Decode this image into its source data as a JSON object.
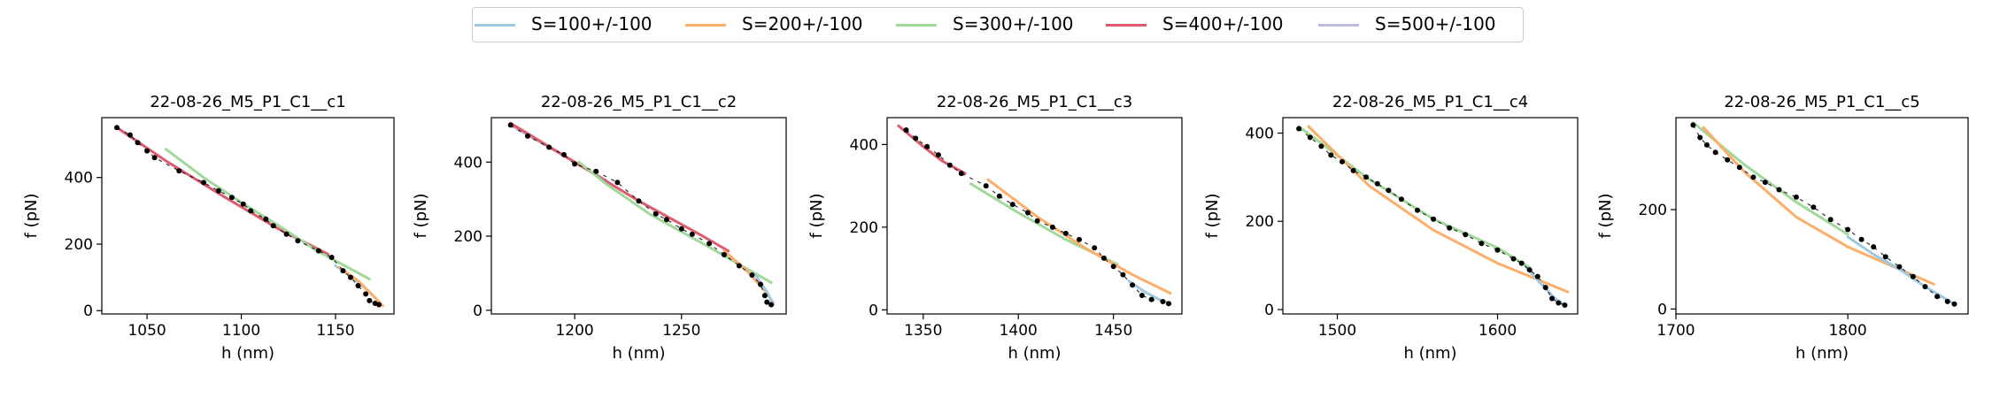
{
  "legend": [
    {
      "label": "S=100+/-100",
      "color": "#9ecae1"
    },
    {
      "label": "S=200+/-100",
      "color": "#fdae6b"
    },
    {
      "label": "S=300+/-100",
      "color": "#a1d99b"
    },
    {
      "label": "S=400+/-100",
      "color": "#de5b6d"
    },
    {
      "label": "S=500+/-100",
      "color": "#bcbddc"
    }
  ],
  "chart_data": [
    {
      "type": "scatter",
      "title": "22-08-26_M5_P1_C1__c1",
      "xlabel": "h (nm)",
      "ylabel": "f (pN)",
      "xlim": [
        1026,
        1181
      ],
      "ylim": [
        -10,
        580
      ],
      "xticks": [
        1050,
        1100,
        1150
      ],
      "yticks": [
        0,
        200,
        400
      ],
      "points": [
        [
          1034,
          550
        ],
        [
          1041,
          528
        ],
        [
          1045,
          505
        ],
        [
          1050,
          480
        ],
        [
          1054,
          460
        ],
        [
          1067,
          420
        ],
        [
          1080,
          385
        ],
        [
          1088,
          360
        ],
        [
          1095,
          340
        ],
        [
          1101,
          320
        ],
        [
          1105,
          300
        ],
        [
          1113,
          275
        ],
        [
          1117,
          255
        ],
        [
          1124,
          230
        ],
        [
          1130,
          210
        ],
        [
          1141,
          180
        ],
        [
          1148,
          160
        ],
        [
          1154,
          120
        ],
        [
          1158,
          100
        ],
        [
          1162,
          75
        ],
        [
          1166,
          50
        ],
        [
          1168,
          30
        ],
        [
          1171,
          22
        ],
        [
          1173,
          18
        ]
      ],
      "series": [
        {
          "name": "S=400+/-100",
          "color": "#de5b6d",
          "x": [
            1034,
            1060,
            1090,
            1120,
            1146
          ],
          "y": [
            550,
            450,
            345,
            245,
            170
          ]
        },
        {
          "name": "S=300+/-100",
          "color": "#a1d99b",
          "x": [
            1060,
            1080,
            1100,
            1120,
            1140,
            1168
          ],
          "y": [
            485,
            400,
            325,
            255,
            180,
            95
          ]
        },
        {
          "name": "S=100+/-100",
          "color": "#9ecae1",
          "x": [
            1150,
            1160,
            1168,
            1175
          ],
          "y": [
            135,
            95,
            55,
            15
          ]
        },
        {
          "name": "S=200+/-100",
          "color": "#fdae6b",
          "x": [
            1152,
            1162,
            1170,
            1175
          ],
          "y": [
            130,
            90,
            45,
            15
          ]
        }
      ]
    },
    {
      "type": "scatter",
      "title": "22-08-26_M5_P1_C1__c2",
      "xlabel": "h (nm)",
      "ylabel": "f (pN)",
      "xlim": [
        1161,
        1299
      ],
      "ylim": [
        -10,
        520
      ],
      "xticks": [
        1200,
        1250
      ],
      "yticks": [
        0,
        200,
        400
      ],
      "points": [
        [
          1170,
          500
        ],
        [
          1178,
          470
        ],
        [
          1188,
          440
        ],
        [
          1195,
          420
        ],
        [
          1200,
          395
        ],
        [
          1210,
          375
        ],
        [
          1220,
          345
        ],
        [
          1230,
          295
        ],
        [
          1238,
          260
        ],
        [
          1243,
          245
        ],
        [
          1250,
          220
        ],
        [
          1255,
          205
        ],
        [
          1263,
          180
        ],
        [
          1270,
          150
        ],
        [
          1277,
          120
        ],
        [
          1283,
          95
        ],
        [
          1287,
          70
        ],
        [
          1289,
          40
        ],
        [
          1290,
          22
        ],
        [
          1292,
          15
        ]
      ],
      "series": [
        {
          "name": "S=500+/-100",
          "color": "#bcbddc",
          "x": [
            1170,
            1185,
            1200,
            1215
          ],
          "y": [
            500,
            450,
            400,
            350
          ]
        },
        {
          "name": "S=400+/-100",
          "color": "#de5b6d",
          "x": [
            1170,
            1200,
            1230,
            1260,
            1272
          ],
          "y": [
            505,
            400,
            295,
            200,
            160
          ]
        },
        {
          "name": "S=300+/-100",
          "color": "#a1d99b",
          "x": [
            1202,
            1215,
            1235,
            1260,
            1292
          ],
          "y": [
            400,
            340,
            260,
            180,
            75
          ]
        },
        {
          "name": "S=200+/-100",
          "color": "#fdae6b",
          "x": [
            1270,
            1280,
            1288,
            1293
          ],
          "y": [
            160,
            110,
            60,
            20
          ]
        },
        {
          "name": "S=100+/-100",
          "color": "#9ecae1",
          "x": [
            1284,
            1290,
            1293
          ],
          "y": [
            100,
            50,
            15
          ]
        }
      ]
    },
    {
      "type": "scatter",
      "title": "22-08-26_M5_P1_C1__c3",
      "xlabel": "h (nm)",
      "ylabel": "f (pN)",
      "xlim": [
        1331,
        1486
      ],
      "ylim": [
        -10,
        465
      ],
      "xticks": [
        1350,
        1400,
        1450
      ],
      "yticks": [
        0,
        200,
        400
      ],
      "points": [
        [
          1341,
          435
        ],
        [
          1346,
          415
        ],
        [
          1352,
          395
        ],
        [
          1358,
          375
        ],
        [
          1364,
          350
        ],
        [
          1370,
          330
        ],
        [
          1383,
          300
        ],
        [
          1390,
          275
        ],
        [
          1397,
          255
        ],
        [
          1405,
          235
        ],
        [
          1410,
          215
        ],
        [
          1418,
          200
        ],
        [
          1425,
          185
        ],
        [
          1432,
          170
        ],
        [
          1440,
          150
        ],
        [
          1445,
          125
        ],
        [
          1450,
          105
        ],
        [
          1455,
          85
        ],
        [
          1460,
          60
        ],
        [
          1465,
          35
        ],
        [
          1470,
          25
        ],
        [
          1476,
          20
        ],
        [
          1479,
          15
        ]
      ],
      "series": [
        {
          "name": "S=400+/-100",
          "color": "#de5b6d",
          "x": [
            1337,
            1350,
            1360,
            1372
          ],
          "y": [
            445,
            395,
            360,
            330
          ]
        },
        {
          "name": "S=300+/-100",
          "color": "#a1d99b",
          "x": [
            1375,
            1400,
            1425,
            1452
          ],
          "y": [
            305,
            235,
            170,
            110
          ]
        },
        {
          "name": "S=200+/-100",
          "color": "#fdae6b",
          "x": [
            1384,
            1410,
            1435,
            1460,
            1480
          ],
          "y": [
            315,
            225,
            150,
            85,
            40
          ]
        },
        {
          "name": "S=100+/-100",
          "color": "#9ecae1",
          "x": [
            1458,
            1466,
            1474,
            1480
          ],
          "y": [
            70,
            45,
            25,
            15
          ]
        }
      ]
    },
    {
      "type": "scatter",
      "title": "22-08-26_M5_P1_C1__c4",
      "xlabel": "h (nm)",
      "ylabel": "f (pN)",
      "xlim": [
        1466,
        1650
      ],
      "ylim": [
        -10,
        435
      ],
      "xticks": [
        1500,
        1600
      ],
      "yticks": [
        0,
        200,
        400
      ],
      "points": [
        [
          1476,
          410
        ],
        [
          1483,
          390
        ],
        [
          1490,
          370
        ],
        [
          1496,
          350
        ],
        [
          1503,
          335
        ],
        [
          1510,
          315
        ],
        [
          1518,
          300
        ],
        [
          1525,
          285
        ],
        [
          1532,
          270
        ],
        [
          1540,
          250
        ],
        [
          1550,
          225
        ],
        [
          1560,
          205
        ],
        [
          1570,
          185
        ],
        [
          1580,
          170
        ],
        [
          1590,
          150
        ],
        [
          1600,
          135
        ],
        [
          1610,
          115
        ],
        [
          1615,
          105
        ],
        [
          1620,
          90
        ],
        [
          1625,
          75
        ],
        [
          1630,
          50
        ],
        [
          1634,
          25
        ],
        [
          1638,
          15
        ],
        [
          1642,
          10
        ]
      ],
      "series": [
        {
          "name": "S=300+/-100",
          "color": "#a1d99b",
          "x": [
            1476,
            1520,
            1560,
            1600,
            1620
          ],
          "y": [
            415,
            295,
            205,
            140,
            95
          ]
        },
        {
          "name": "S=200+/-100",
          "color": "#fdae6b",
          "x": [
            1482,
            1520,
            1560,
            1600,
            1644
          ],
          "y": [
            415,
            280,
            180,
            105,
            40
          ]
        },
        {
          "name": "S=100+/-100",
          "color": "#9ecae1",
          "x": [
            1618,
            1628,
            1636,
            1642
          ],
          "y": [
            95,
            55,
            25,
            10
          ]
        }
      ]
    },
    {
      "type": "scatter",
      "title": "22-08-26_M5_P1_C1__c5",
      "xlabel": "h (nm)",
      "ylabel": "f (pN)",
      "xlim": [
        1700,
        1870
      ],
      "ylim": [
        -10,
        385
      ],
      "xticks": [
        1700,
        1800
      ],
      "yticks": [
        0,
        200
      ],
      "points": [
        [
          1710,
          370
        ],
        [
          1714,
          345
        ],
        [
          1718,
          330
        ],
        [
          1723,
          315
        ],
        [
          1730,
          300
        ],
        [
          1737,
          285
        ],
        [
          1745,
          265
        ],
        [
          1752,
          255
        ],
        [
          1760,
          240
        ],
        [
          1770,
          225
        ],
        [
          1780,
          205
        ],
        [
          1790,
          180
        ],
        [
          1800,
          160
        ],
        [
          1808,
          140
        ],
        [
          1815,
          125
        ],
        [
          1822,
          105
        ],
        [
          1830,
          85
        ],
        [
          1838,
          65
        ],
        [
          1845,
          45
        ],
        [
          1852,
          25
        ],
        [
          1858,
          15
        ],
        [
          1862,
          10
        ]
      ],
      "series": [
        {
          "name": "S=300+/-100",
          "color": "#a1d99b",
          "x": [
            1710,
            1740,
            1770,
            1800
          ],
          "y": [
            375,
            290,
            215,
            150
          ]
        },
        {
          "name": "S=200+/-100",
          "color": "#fdae6b",
          "x": [
            1716,
            1740,
            1770,
            1800,
            1830,
            1850
          ],
          "y": [
            365,
            275,
            185,
            125,
            80,
            50
          ]
        },
        {
          "name": "S=100+/-100",
          "color": "#9ecae1",
          "x": [
            1800,
            1815,
            1830,
            1845,
            1862
          ],
          "y": [
            145,
            110,
            80,
            45,
            10
          ]
        }
      ]
    }
  ]
}
